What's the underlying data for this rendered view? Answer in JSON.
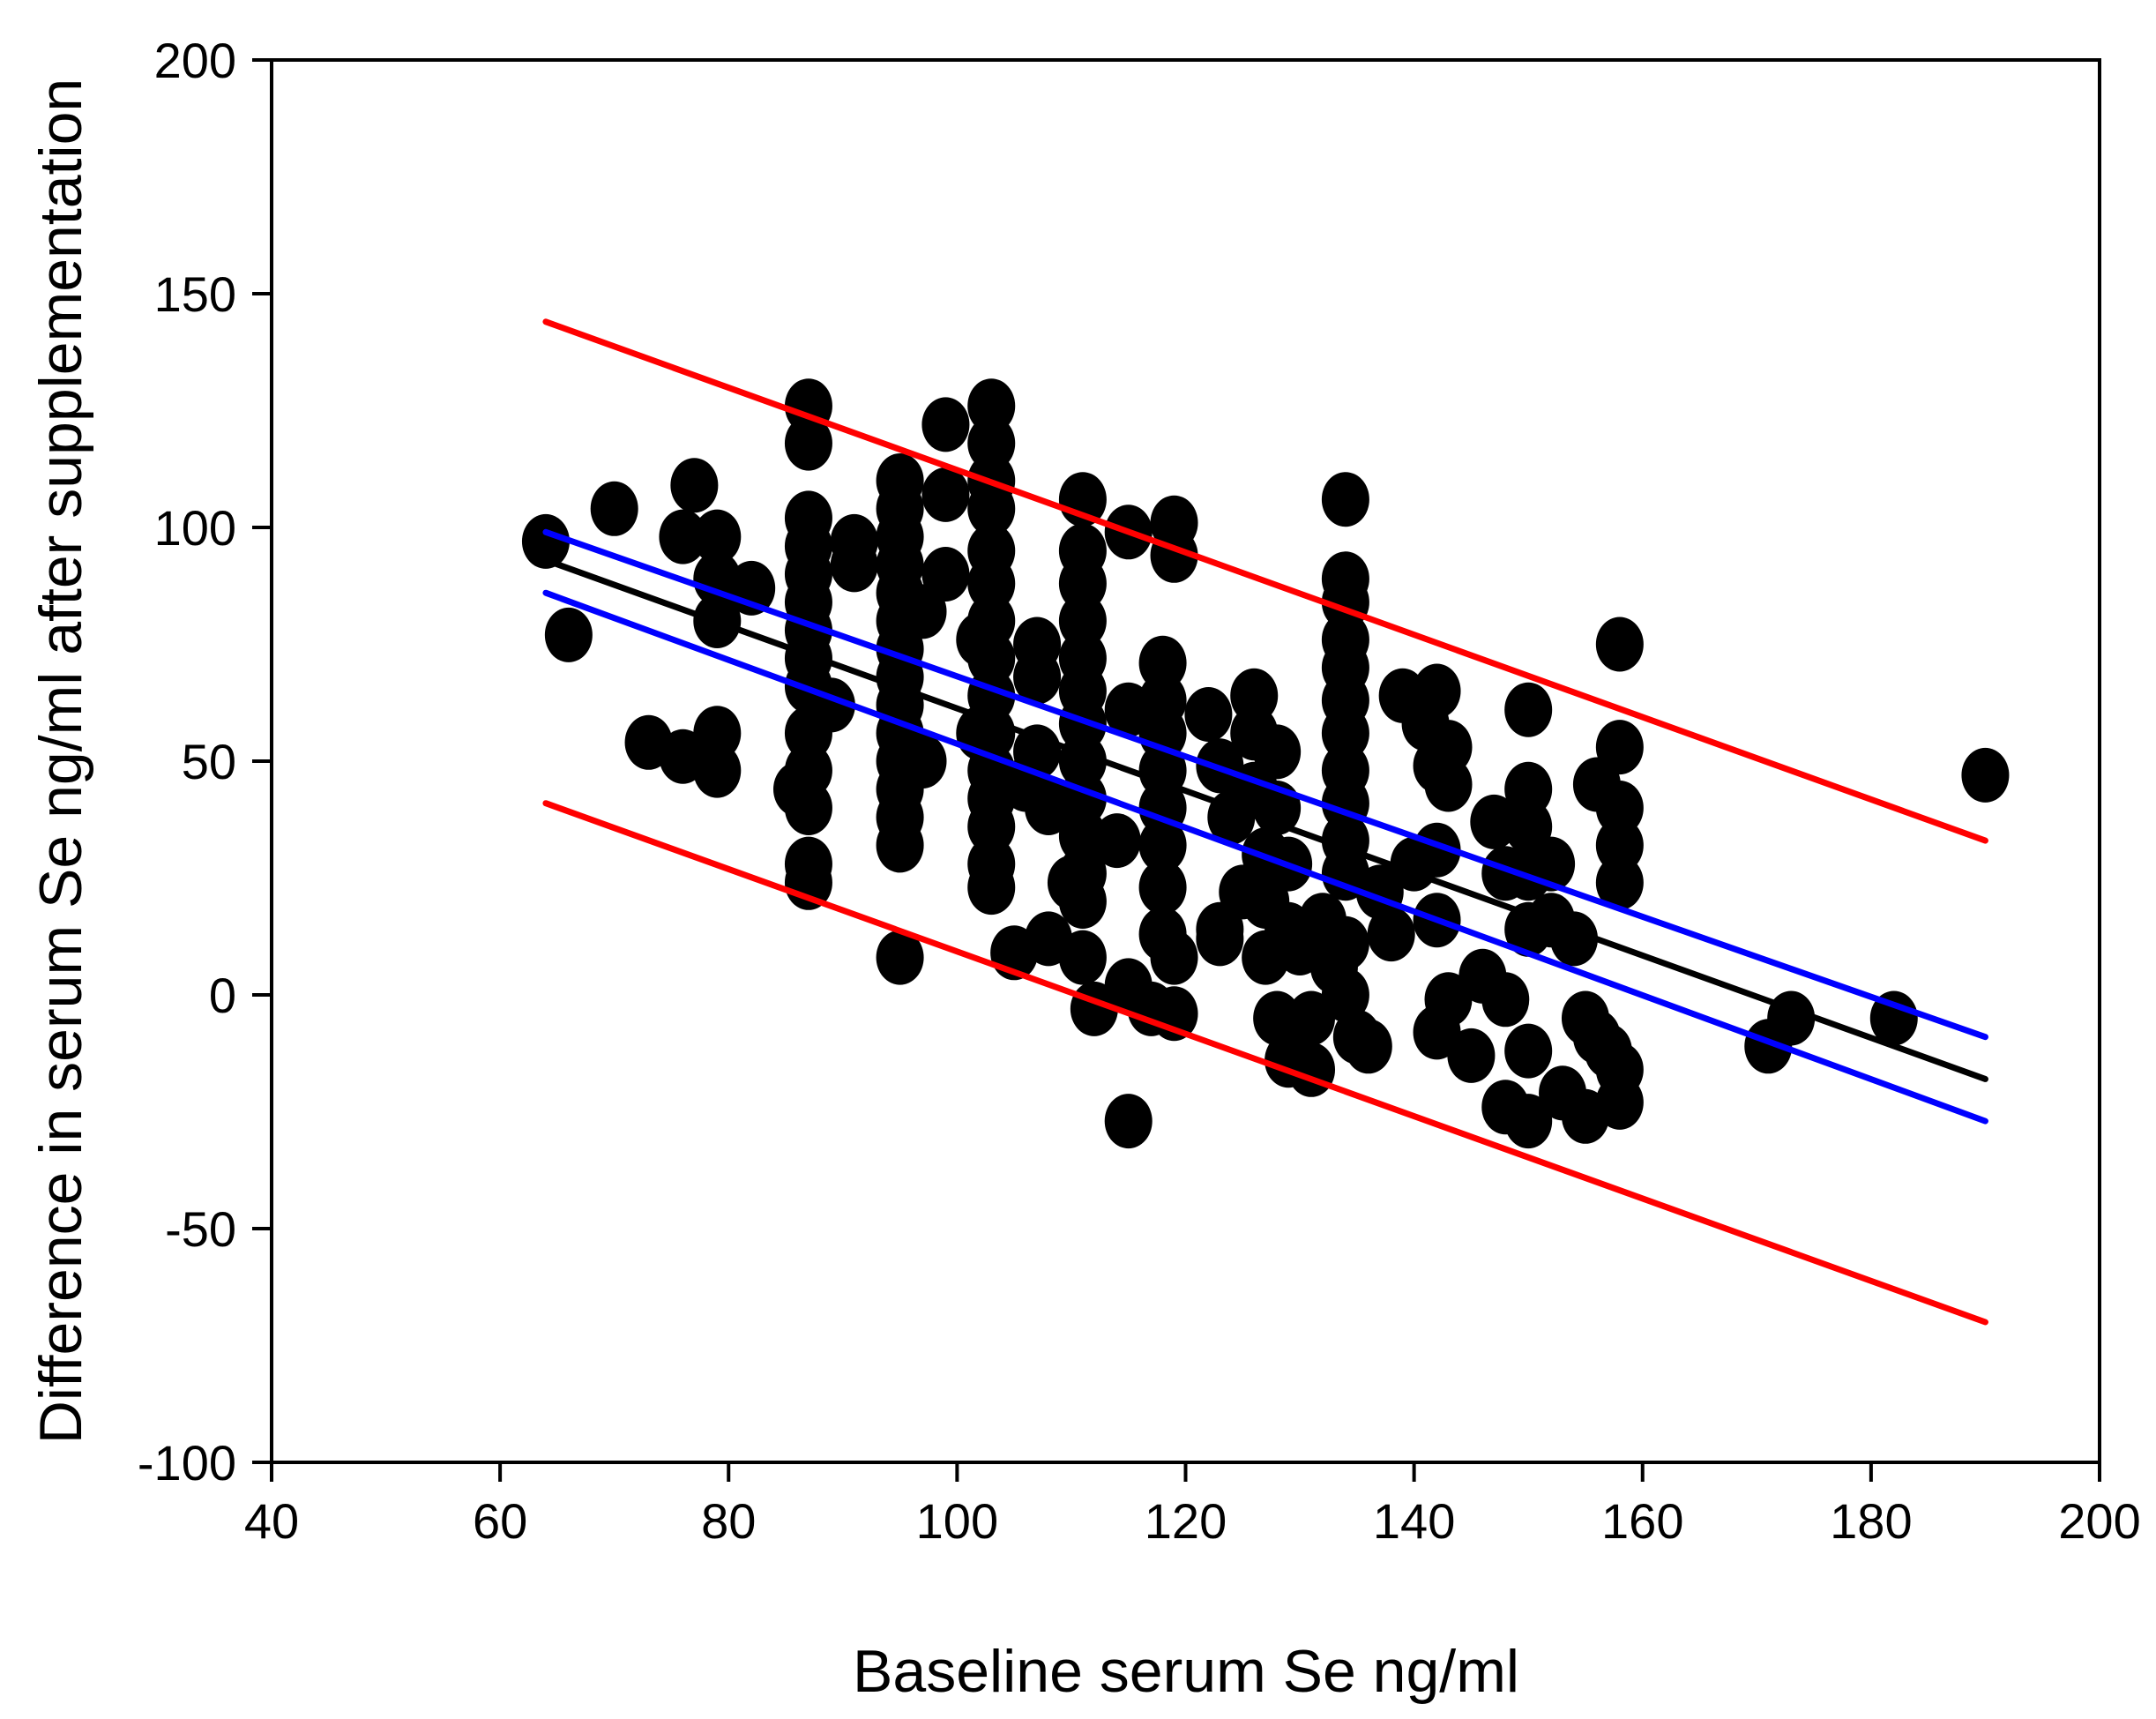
{
  "chart_data": {
    "type": "scatter",
    "title": "",
    "xlabel": "Baseline serum Se ng/ml",
    "ylabel": "Difference in serum Se ng/ml after supplementation",
    "xlim": [
      40,
      200
    ],
    "ylim": [
      -100,
      200
    ],
    "x_ticks": [
      40,
      60,
      80,
      100,
      120,
      140,
      160,
      180,
      200
    ],
    "y_ticks": [
      -100,
      -50,
      0,
      50,
      100,
      150,
      200
    ],
    "x_tick_labels": [
      "40",
      "60",
      "80",
      "100",
      "120",
      "140",
      "160",
      "180",
      "200"
    ],
    "y_tick_labels": [
      "-100",
      "-50",
      "0",
      "50",
      "100",
      "150",
      "200"
    ],
    "grid": false,
    "legend": "none",
    "marker_color": "#000000",
    "points": [
      [
        64,
        97
      ],
      [
        66,
        77
      ],
      [
        70,
        104
      ],
      [
        73,
        54
      ],
      [
        76,
        51
      ],
      [
        76,
        98
      ],
      [
        77,
        109
      ],
      [
        79,
        98
      ],
      [
        79,
        89
      ],
      [
        79,
        80
      ],
      [
        79,
        56
      ],
      [
        79,
        48
      ],
      [
        82,
        87
      ],
      [
        86,
        44
      ],
      [
        87,
        126
      ],
      [
        87,
        118
      ],
      [
        87,
        102
      ],
      [
        87,
        96
      ],
      [
        87,
        90
      ],
      [
        87,
        84
      ],
      [
        87,
        78
      ],
      [
        87,
        72
      ],
      [
        87,
        66
      ],
      [
        87,
        56
      ],
      [
        87,
        48
      ],
      [
        87,
        40
      ],
      [
        87,
        28
      ],
      [
        87,
        24
      ],
      [
        89,
        62
      ],
      [
        91,
        97
      ],
      [
        91,
        92
      ],
      [
        95,
        110
      ],
      [
        95,
        104
      ],
      [
        95,
        98
      ],
      [
        95,
        92
      ],
      [
        95,
        86
      ],
      [
        95,
        80
      ],
      [
        95,
        74
      ],
      [
        95,
        68
      ],
      [
        95,
        62
      ],
      [
        95,
        56
      ],
      [
        95,
        50
      ],
      [
        95,
        44
      ],
      [
        95,
        38
      ],
      [
        95,
        32
      ],
      [
        95,
        8
      ],
      [
        97,
        50
      ],
      [
        97,
        82
      ],
      [
        99,
        122
      ],
      [
        99,
        107
      ],
      [
        99,
        90
      ],
      [
        102,
        76
      ],
      [
        102,
        56
      ],
      [
        103,
        126
      ],
      [
        103,
        118
      ],
      [
        103,
        110
      ],
      [
        103,
        104
      ],
      [
        103,
        95
      ],
      [
        103,
        88
      ],
      [
        103,
        80
      ],
      [
        103,
        72
      ],
      [
        103,
        64
      ],
      [
        103,
        56
      ],
      [
        103,
        48
      ],
      [
        103,
        42
      ],
      [
        103,
        36
      ],
      [
        103,
        28
      ],
      [
        103,
        23
      ],
      [
        105,
        9
      ],
      [
        106,
        45
      ],
      [
        107,
        75
      ],
      [
        107,
        68
      ],
      [
        107,
        52
      ],
      [
        108,
        40
      ],
      [
        108,
        12
      ],
      [
        110,
        24
      ],
      [
        111,
        106
      ],
      [
        111,
        95
      ],
      [
        111,
        88
      ],
      [
        111,
        80
      ],
      [
        111,
        72
      ],
      [
        111,
        65
      ],
      [
        111,
        58
      ],
      [
        111,
        50
      ],
      [
        111,
        42
      ],
      [
        111,
        34
      ],
      [
        111,
        26
      ],
      [
        111,
        20
      ],
      [
        111,
        8
      ],
      [
        112,
        -3
      ],
      [
        114,
        33
      ],
      [
        115,
        61
      ],
      [
        115,
        99
      ],
      [
        115,
        2
      ],
      [
        115,
        -27
      ],
      [
        117,
        -3
      ],
      [
        118,
        71
      ],
      [
        118,
        63
      ],
      [
        118,
        56
      ],
      [
        118,
        48
      ],
      [
        118,
        40
      ],
      [
        118,
        32
      ],
      [
        118,
        23
      ],
      [
        118,
        13
      ],
      [
        119,
        101
      ],
      [
        119,
        94
      ],
      [
        119,
        8
      ],
      [
        119,
        -4
      ],
      [
        122,
        60
      ],
      [
        123,
        49
      ],
      [
        123,
        14
      ],
      [
        123,
        12
      ],
      [
        124,
        38
      ],
      [
        125,
        22
      ],
      [
        126,
        64
      ],
      [
        126,
        56
      ],
      [
        126,
        44
      ],
      [
        127,
        30
      ],
      [
        127,
        20
      ],
      [
        127,
        8
      ],
      [
        128,
        -5
      ],
      [
        128,
        52
      ],
      [
        128,
        40
      ],
      [
        129,
        28
      ],
      [
        129,
        14
      ],
      [
        129,
        -14
      ],
      [
        130,
        10
      ],
      [
        131,
        -16
      ],
      [
        131,
        -5
      ],
      [
        132,
        16
      ],
      [
        133,
        6
      ],
      [
        134,
        0
      ],
      [
        134,
        106
      ],
      [
        134,
        89
      ],
      [
        134,
        84
      ],
      [
        134,
        76
      ],
      [
        134,
        70
      ],
      [
        134,
        63
      ],
      [
        134,
        56
      ],
      [
        134,
        48
      ],
      [
        134,
        41
      ],
      [
        134,
        33
      ],
      [
        134,
        26
      ],
      [
        134,
        11
      ],
      [
        135,
        -9
      ],
      [
        136,
        -11
      ],
      [
        137,
        22
      ],
      [
        138,
        13
      ],
      [
        139,
        64
      ],
      [
        140,
        28
      ],
      [
        141,
        58
      ],
      [
        142,
        65
      ],
      [
        142,
        49
      ],
      [
        142,
        31
      ],
      [
        142,
        16
      ],
      [
        142,
        -8
      ],
      [
        143,
        -1
      ],
      [
        143,
        53
      ],
      [
        143,
        45
      ],
      [
        145,
        -13
      ],
      [
        146,
        4
      ],
      [
        147,
        37
      ],
      [
        148,
        26
      ],
      [
        148,
        -1
      ],
      [
        148,
        -24
      ],
      [
        150,
        61
      ],
      [
        150,
        44
      ],
      [
        150,
        36
      ],
      [
        150,
        26
      ],
      [
        150,
        14
      ],
      [
        150,
        -12
      ],
      [
        150,
        -27
      ],
      [
        152,
        28
      ],
      [
        152,
        16
      ],
      [
        153,
        -21
      ],
      [
        154,
        12
      ],
      [
        155,
        -5
      ],
      [
        155,
        -26
      ],
      [
        156,
        45
      ],
      [
        156,
        -9
      ],
      [
        157,
        -12
      ],
      [
        158,
        75
      ],
      [
        158,
        53
      ],
      [
        158,
        40
      ],
      [
        158,
        32
      ],
      [
        158,
        24
      ],
      [
        158,
        -16
      ],
      [
        158,
        -23
      ],
      [
        171,
        -11
      ],
      [
        173,
        -5
      ],
      [
        182,
        -5
      ],
      [
        190,
        47
      ]
    ],
    "lines": [
      {
        "role": "regression",
        "color": "#000000",
        "x": [
          64,
          190
        ],
        "y": [
          93,
          -18
        ]
      },
      {
        "role": "confidence-upper",
        "color": "#0000ff",
        "x": [
          64,
          190
        ],
        "y": [
          99,
          -9
        ]
      },
      {
        "role": "confidence-lower",
        "color": "#0000ff",
        "x": [
          64,
          190
        ],
        "y": [
          86,
          -27
        ]
      },
      {
        "role": "prediction-upper",
        "color": "#ff0000",
        "x": [
          64,
          190
        ],
        "y": [
          144,
          33
        ]
      },
      {
        "role": "prediction-lower",
        "color": "#ff0000",
        "x": [
          64,
          190
        ],
        "y": [
          41,
          -70
        ]
      }
    ]
  }
}
